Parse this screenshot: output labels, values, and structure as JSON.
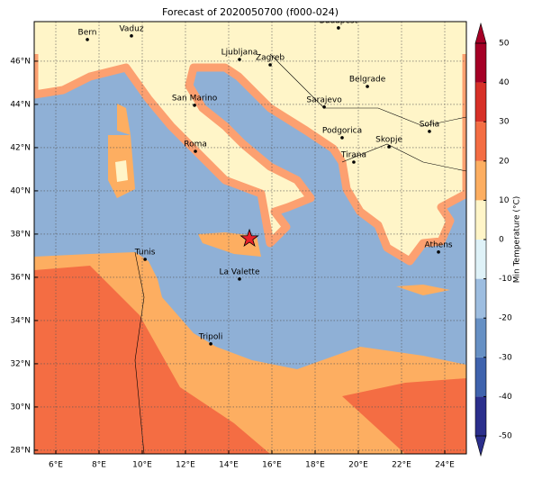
{
  "title": "Forecast of 2020050700 (f000-024)",
  "map": {
    "xlim": [
      5,
      25
    ],
    "ylim": [
      27.83,
      47.83
    ],
    "lon_ticks": [
      {
        "value": 6,
        "label": "6°E"
      },
      {
        "value": 8,
        "label": "8°E"
      },
      {
        "value": 10,
        "label": "10°E"
      },
      {
        "value": 12,
        "label": "12°E"
      },
      {
        "value": 14,
        "label": "14°E"
      },
      {
        "value": 16,
        "label": "16°E"
      },
      {
        "value": 18,
        "label": "18°E"
      },
      {
        "value": 20,
        "label": "20°E"
      },
      {
        "value": 22,
        "label": "22°E"
      },
      {
        "value": 24,
        "label": "24°E"
      }
    ],
    "lat_ticks": [
      {
        "value": 28,
        "label": "28°N"
      },
      {
        "value": 30,
        "label": "30°N"
      },
      {
        "value": 32,
        "label": "32°N"
      },
      {
        "value": 34,
        "label": "34°N"
      },
      {
        "value": 36,
        "label": "36°N"
      },
      {
        "value": 38,
        "label": "38°N"
      },
      {
        "value": 40,
        "label": "40°N"
      },
      {
        "value": 42,
        "label": "42°N"
      },
      {
        "value": 44,
        "label": "44°N"
      },
      {
        "value": 46,
        "label": "46°N"
      }
    ],
    "grid": true,
    "cities": [
      {
        "name": "Bern",
        "lon": 7.46,
        "lat": 47.0
      },
      {
        "name": "Vaduz",
        "lon": 9.5,
        "lat": 47.17
      },
      {
        "name": "Budapest",
        "lon": 19.08,
        "lat": 47.54
      },
      {
        "name": "Ljubljana",
        "lon": 14.5,
        "lat": 46.08
      },
      {
        "name": "Zagreb",
        "lon": 15.92,
        "lat": 45.83
      },
      {
        "name": "Belgrade",
        "lon": 20.42,
        "lat": 44.83
      },
      {
        "name": "San Marino",
        "lon": 12.42,
        "lat": 43.96
      },
      {
        "name": "Sarajevo",
        "lon": 18.42,
        "lat": 43.88
      },
      {
        "name": "Sofia",
        "lon": 23.29,
        "lat": 42.75
      },
      {
        "name": "Podgorica",
        "lon": 19.25,
        "lat": 42.46
      },
      {
        "name": "Skopje",
        "lon": 21.42,
        "lat": 42.04
      },
      {
        "name": "Roma",
        "lon": 12.46,
        "lat": 41.83
      },
      {
        "name": "Tirana",
        "lon": 19.79,
        "lat": 41.33
      },
      {
        "name": "Athens",
        "lon": 23.71,
        "lat": 37.17
      },
      {
        "name": "Tunis",
        "lon": 10.13,
        "lat": 36.83
      },
      {
        "name": "La Valette",
        "lon": 14.5,
        "lat": 35.92
      },
      {
        "name": "Tripoli",
        "lon": 13.17,
        "lat": 32.92
      }
    ],
    "marker": {
      "lon": 14.96,
      "lat": 37.79,
      "color": "#e8202a"
    }
  },
  "colorbar": {
    "label": "Min Temperature (°C)",
    "levels": [
      -50,
      -40,
      -30,
      -20,
      -10,
      0,
      10,
      20,
      30,
      40,
      50
    ],
    "colors": [
      "#2b2f8c",
      "#3f63ad",
      "#6690c4",
      "#9dbde0",
      "#dff2f8",
      "#fff5c8",
      "#fdae61",
      "#f46d43",
      "#d73027",
      "#a50026"
    ],
    "ticks": [
      -50,
      -40,
      -30,
      -20,
      -10,
      0,
      10,
      20,
      30,
      40,
      50
    ]
  }
}
